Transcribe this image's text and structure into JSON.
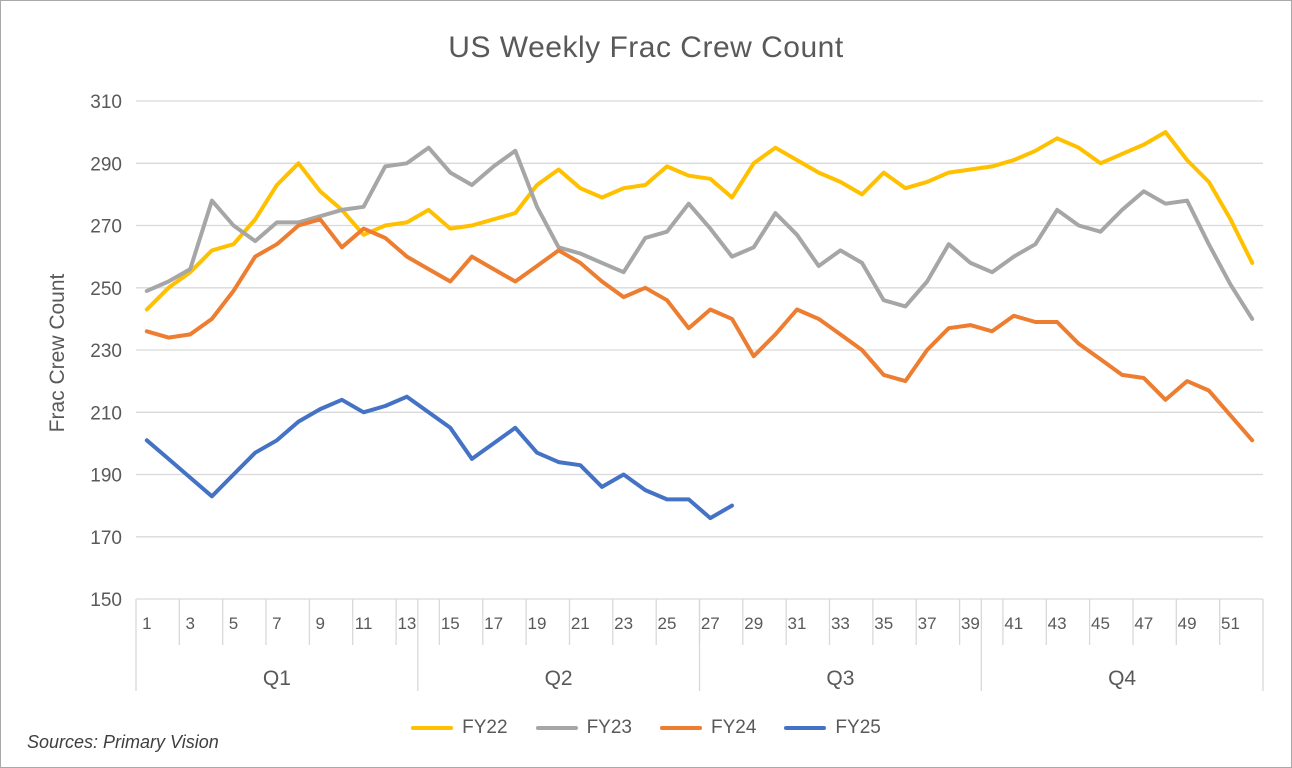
{
  "source": "Sources: Primary Vision",
  "chart_data": {
    "type": "line",
    "title": "US Weekly Frac Crew Count",
    "xlabel": "",
    "ylabel": "Frac Crew Count",
    "ylim": [
      150,
      310
    ],
    "y_ticks": [
      150,
      170,
      190,
      210,
      230,
      250,
      270,
      290,
      310
    ],
    "x_ticks": [
      1,
      3,
      5,
      7,
      9,
      11,
      13,
      15,
      17,
      19,
      21,
      23,
      25,
      27,
      29,
      31,
      33,
      35,
      37,
      39,
      41,
      43,
      45,
      47,
      49,
      51
    ],
    "grid": true,
    "legend_position": "bottom",
    "quarters": [
      {
        "label": "Q1",
        "start": 1,
        "end": 13
      },
      {
        "label": "Q2",
        "start": 14,
        "end": 26
      },
      {
        "label": "Q3",
        "start": 27,
        "end": 39
      },
      {
        "label": "Q4",
        "start": 40,
        "end": 52
      }
    ],
    "series": [
      {
        "name": "FY22",
        "color": "#FFC000",
        "values": [
          243,
          250,
          255,
          262,
          264,
          272,
          283,
          290,
          281,
          275,
          267,
          270,
          271,
          275,
          269,
          270,
          272,
          274,
          283,
          288,
          282,
          279,
          282,
          283,
          289,
          286,
          285,
          279,
          290,
          295,
          291,
          287,
          284,
          280,
          287,
          282,
          284,
          287,
          288,
          289,
          291,
          294,
          298,
          295,
          290,
          293,
          296,
          300,
          291,
          284,
          272,
          258
        ]
      },
      {
        "name": "FY23",
        "color": "#A6A6A6",
        "values": [
          249,
          252,
          256,
          278,
          270,
          265,
          271,
          271,
          273,
          275,
          276,
          289,
          290,
          295,
          287,
          283,
          289,
          294,
          276,
          263,
          261,
          258,
          255,
          266,
          268,
          277,
          269,
          260,
          263,
          274,
          267,
          257,
          262,
          258,
          246,
          244,
          252,
          264,
          258,
          255,
          260,
          264,
          275,
          270,
          268,
          275,
          281,
          277,
          278,
          264,
          251,
          240
        ]
      },
      {
        "name": "FY24",
        "color": "#ED7D31",
        "values": [
          236,
          234,
          235,
          240,
          249,
          260,
          264,
          270,
          272,
          263,
          269,
          266,
          260,
          256,
          252,
          260,
          256,
          252,
          257,
          262,
          258,
          252,
          247,
          250,
          246,
          237,
          243,
          240,
          228,
          235,
          243,
          240,
          235,
          230,
          222,
          220,
          230,
          237,
          238,
          236,
          241,
          239,
          239,
          232,
          227,
          222,
          221,
          214,
          220,
          217,
          209,
          201
        ]
      },
      {
        "name": "FY25",
        "color": "#4472C4",
        "values": [
          201,
          195,
          189,
          183,
          190,
          197,
          201,
          207,
          211,
          214,
          210,
          212,
          215,
          210,
          205,
          195,
          200,
          205,
          197,
          194,
          193,
          186,
          190,
          185,
          182,
          182,
          176,
          180
        ]
      }
    ]
  }
}
